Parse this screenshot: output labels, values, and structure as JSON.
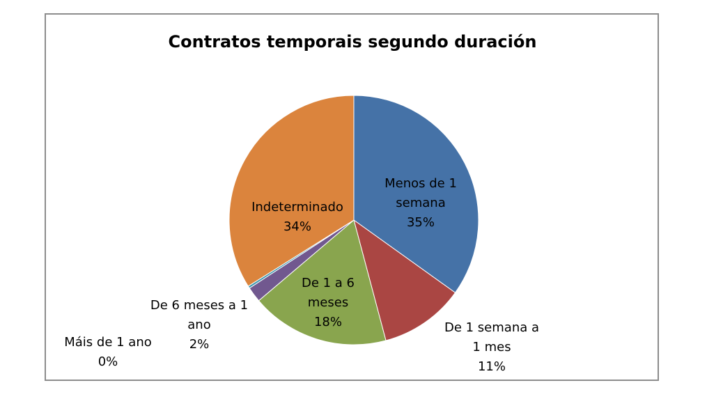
{
  "chart_data": {
    "type": "pie",
    "title": "Contratos  temporais segundo duración",
    "slices": [
      {
        "name": "Menos de 1 semana",
        "value": 35,
        "color": "#4572A7",
        "label_lines": [
          "Menos de 1",
          "semana",
          "35%"
        ]
      },
      {
        "name": "De 1 semana a 1 mes",
        "value": 11,
        "color": "#AA4643",
        "label_lines": [
          "De 1 semana a",
          "1 mes",
          "11%"
        ]
      },
      {
        "name": "De 1 a 6 meses",
        "value": 18,
        "color": "#89A54E",
        "label_lines": [
          "De 1 a 6",
          "meses",
          "18%"
        ]
      },
      {
        "name": "De 6 meses a 1 ano",
        "value": 2,
        "color": "#71588F",
        "label_lines": [
          "De 6 meses a 1",
          "ano",
          "2%"
        ]
      },
      {
        "name": "Máis de 1 ano",
        "value": 0.3,
        "color": "#4198AF",
        "label_lines": [
          "Máis de 1 ano",
          "0%"
        ]
      },
      {
        "name": "Indeterminado",
        "value": 34,
        "color": "#DB843D",
        "label_lines": [
          "Indeterminado",
          "34%"
        ]
      }
    ],
    "start_angle_deg": 0,
    "direction": "clockwise",
    "legend": "none"
  }
}
